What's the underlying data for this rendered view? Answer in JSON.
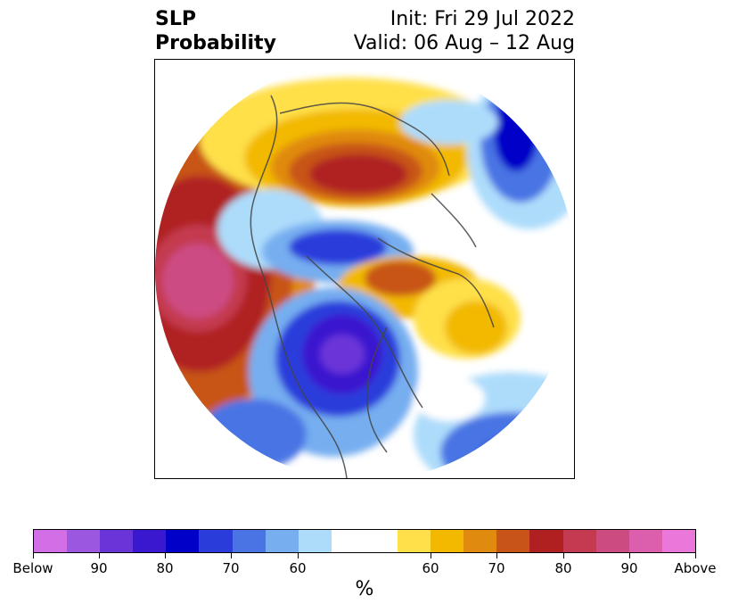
{
  "title": {
    "left_line1": "SLP",
    "left_line2": "Probability",
    "right_line1": "Init: Fri 29 Jul 2022",
    "right_line2": "Valid: 06 Aug – 12 Aug"
  },
  "colorbar": {
    "units": "%",
    "labels": [
      "Below",
      "90",
      "80",
      "70",
      "60",
      "60",
      "70",
      "80",
      "90",
      "Above"
    ],
    "colors": [
      "#d36fe6",
      "#9b57e0",
      "#6a35d8",
      "#3a18cf",
      "#0000c8",
      "#2a3ddb",
      "#4a74e4",
      "#76aef0",
      "#addcfb",
      "#ffffff",
      "#ffe04a",
      "#f2b900",
      "#e08a10",
      "#c85418",
      "#b02020",
      "#c43a50",
      "#cc4c82",
      "#db5fad",
      "#ea78da"
    ]
  },
  "map": {
    "projection": "north-polar-stereographic",
    "regions": [
      {
        "name": "pacific-above-max",
        "color": "#cc4c82"
      },
      {
        "name": "siberia-above-high",
        "color": "#b02020"
      },
      {
        "name": "north-america-below",
        "color": "#3a18cf"
      },
      {
        "name": "atlantic-below",
        "color": "#0000c8"
      }
    ]
  }
}
